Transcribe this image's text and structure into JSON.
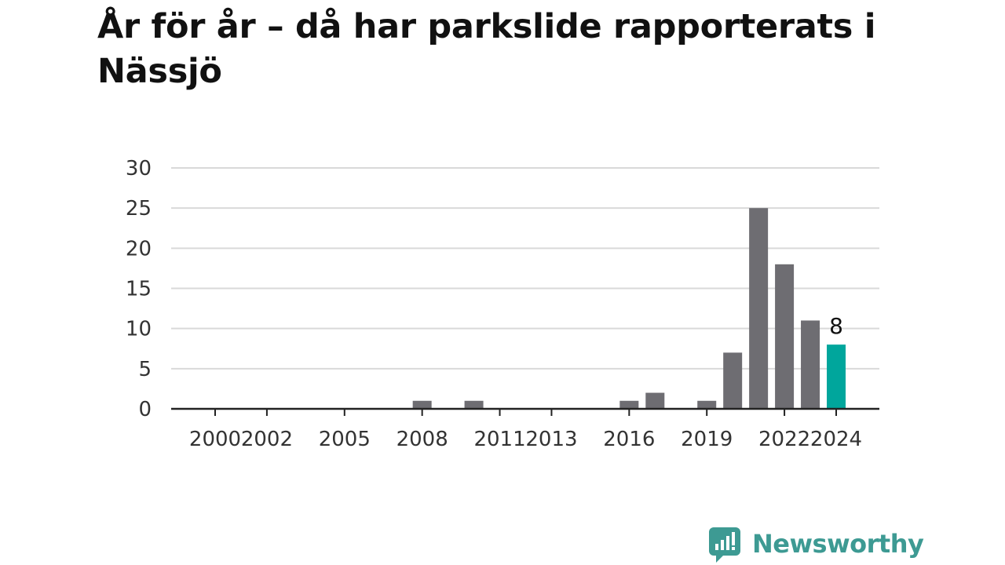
{
  "title": "År för år – då har parkslide rapporterats i Nässjö",
  "brand": {
    "name": "Newsworthy",
    "color": "#3d9a93",
    "icon": "newsworthy-logo-icon"
  },
  "colors": {
    "bar": "#6e6d72",
    "highlight": "#00a69c",
    "grid": "#d9d9d9",
    "axis": "#222222"
  },
  "chart_data": {
    "type": "bar",
    "title": "",
    "xlabel": "",
    "ylabel": "",
    "ylim": [
      0,
      30
    ],
    "yticks": [
      0,
      5,
      10,
      15,
      20,
      25,
      30
    ],
    "grid": true,
    "x": [
      2000,
      2001,
      2002,
      2003,
      2004,
      2005,
      2006,
      2007,
      2008,
      2009,
      2010,
      2011,
      2012,
      2013,
      2014,
      2015,
      2016,
      2017,
      2018,
      2019,
      2020,
      2021,
      2022,
      2023,
      2024
    ],
    "values": [
      0,
      0,
      0,
      0,
      0,
      0,
      0,
      0,
      1,
      0,
      1,
      0,
      0,
      0,
      0,
      0,
      1,
      2,
      0,
      1,
      7,
      25,
      18,
      11,
      8
    ],
    "xtick_labels": [
      "2000",
      "2002",
      "2005",
      "2008",
      "2011",
      "2013",
      "2016",
      "2019",
      "2022",
      "2024"
    ],
    "highlight": {
      "x": 2024,
      "label": "8"
    }
  }
}
